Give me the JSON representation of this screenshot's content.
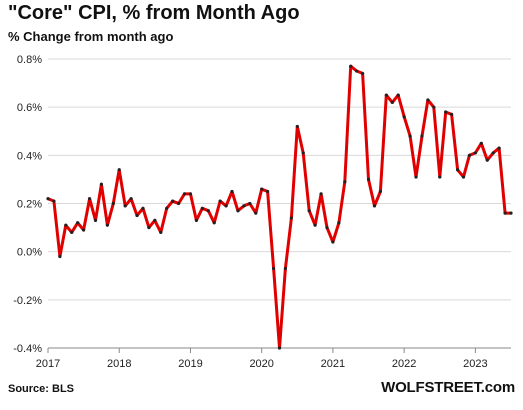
{
  "chart_data": {
    "type": "line",
    "title": "\"Core\" CPI, % from Month Ago",
    "subtitle": "% Change from month ago",
    "xlabel": "",
    "ylabel": "",
    "x_range": [
      "2017-01",
      "2023-07"
    ],
    "ylim": [
      -0.4,
      0.8
    ],
    "y_ticks": [
      -0.4,
      -0.2,
      0.0,
      0.2,
      0.4,
      0.6,
      0.8
    ],
    "y_tick_labels": [
      "-0.4%",
      "-0.2%",
      "0.0%",
      "0.2%",
      "0.4%",
      "0.6%",
      "0.8%"
    ],
    "x_ticks": [
      "2017-01",
      "2018-01",
      "2019-01",
      "2020-01",
      "2021-01",
      "2022-01",
      "2023-01"
    ],
    "x_tick_labels": [
      "2017",
      "2018",
      "2019",
      "2020",
      "2021",
      "2022",
      "2023"
    ],
    "grid": "horizontal",
    "line_color": "#e00000",
    "marker_color": "#222222",
    "series": [
      {
        "name": "",
        "x": [
          "2017-01",
          "2017-02",
          "2017-03",
          "2017-04",
          "2017-05",
          "2017-06",
          "2017-07",
          "2017-08",
          "2017-09",
          "2017-10",
          "2017-11",
          "2017-12",
          "2018-01",
          "2018-02",
          "2018-03",
          "2018-04",
          "2018-05",
          "2018-06",
          "2018-07",
          "2018-08",
          "2018-09",
          "2018-10",
          "2018-11",
          "2018-12",
          "2019-01",
          "2019-02",
          "2019-03",
          "2019-04",
          "2019-05",
          "2019-06",
          "2019-07",
          "2019-08",
          "2019-09",
          "2019-10",
          "2019-11",
          "2019-12",
          "2020-01",
          "2020-02",
          "2020-03",
          "2020-04",
          "2020-05",
          "2020-06",
          "2020-07",
          "2020-08",
          "2020-09",
          "2020-10",
          "2020-11",
          "2020-12",
          "2021-01",
          "2021-02",
          "2021-03",
          "2021-04",
          "2021-05",
          "2021-06",
          "2021-07",
          "2021-08",
          "2021-09",
          "2021-10",
          "2021-11",
          "2021-12",
          "2022-01",
          "2022-02",
          "2022-03",
          "2022-04",
          "2022-05",
          "2022-06",
          "2022-07",
          "2022-08",
          "2022-09",
          "2022-10",
          "2022-11",
          "2022-12",
          "2023-01",
          "2023-02",
          "2023-03",
          "2023-04",
          "2023-05",
          "2023-06",
          "2023-07"
        ],
        "y": [
          0.22,
          0.21,
          -0.02,
          0.11,
          0.08,
          0.12,
          0.09,
          0.22,
          0.13,
          0.28,
          0.11,
          0.2,
          0.34,
          0.19,
          0.22,
          0.15,
          0.18,
          0.1,
          0.13,
          0.08,
          0.18,
          0.21,
          0.2,
          0.24,
          0.24,
          0.13,
          0.18,
          0.17,
          0.12,
          0.21,
          0.19,
          0.25,
          0.17,
          0.19,
          0.2,
          0.16,
          0.26,
          0.25,
          -0.07,
          -0.4,
          -0.07,
          0.14,
          0.52,
          0.41,
          0.17,
          0.11,
          0.24,
          0.1,
          0.04,
          0.12,
          0.29,
          0.77,
          0.75,
          0.74,
          0.3,
          0.19,
          0.25,
          0.65,
          0.62,
          0.65,
          0.56,
          0.48,
          0.31,
          0.48,
          0.63,
          0.6,
          0.31,
          0.58,
          0.57,
          0.34,
          0.31,
          0.4,
          0.41,
          0.45,
          0.38,
          0.41,
          0.43,
          0.16,
          0.16
        ]
      }
    ]
  },
  "footer": {
    "source": "Source: BLS",
    "brand": "WOLFSTREET.com"
  }
}
